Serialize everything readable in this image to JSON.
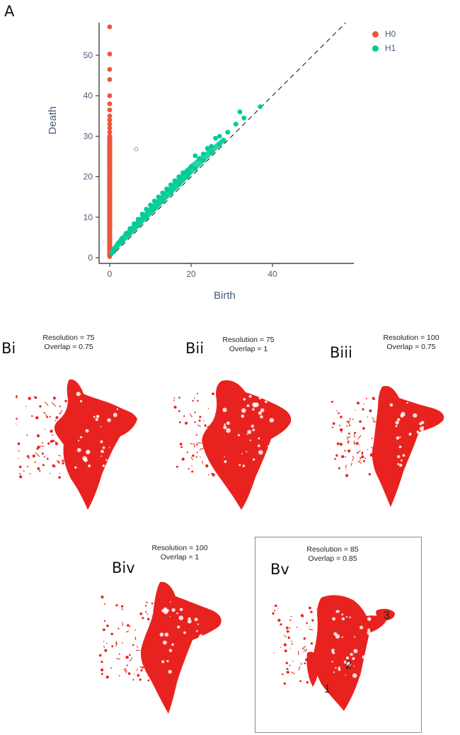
{
  "panel_a": {
    "letter": "A"
  },
  "chart_data": {
    "type": "scatter",
    "title": "",
    "xlabel": "Birth",
    "ylabel": "Death",
    "xlim": [
      -2,
      58
    ],
    "ylim": [
      -1,
      58
    ],
    "xticks": [
      0,
      20,
      40
    ],
    "yticks": [
      0,
      10,
      20,
      30,
      40,
      50
    ],
    "grid": false,
    "diagonal": {
      "style": "dashed",
      "from": [
        0,
        0
      ],
      "to": [
        58,
        58
      ]
    },
    "legend_position": "top-right",
    "series": [
      {
        "name": "H0",
        "color": "#ef553b",
        "points": [
          [
            0,
            57
          ],
          [
            0,
            50.3
          ],
          [
            0,
            46.5
          ],
          [
            0,
            44
          ],
          [
            0,
            40
          ],
          [
            0,
            38
          ],
          [
            0,
            36.5
          ],
          [
            0,
            35
          ],
          [
            0,
            34
          ],
          [
            0,
            33
          ],
          [
            0,
            32
          ],
          [
            0,
            31
          ],
          [
            0,
            30
          ],
          [
            0,
            29
          ],
          [
            0,
            28
          ],
          [
            0,
            27
          ],
          [
            0,
            26
          ],
          [
            0,
            25
          ],
          [
            0,
            24
          ],
          [
            0,
            23
          ],
          [
            0,
            22
          ],
          [
            0,
            21
          ],
          [
            0,
            20
          ],
          [
            0,
            19
          ],
          [
            0,
            18
          ],
          [
            0,
            17
          ],
          [
            0,
            16
          ],
          [
            0,
            15
          ],
          [
            0,
            14
          ],
          [
            0,
            13
          ],
          [
            0,
            12
          ],
          [
            0,
            11
          ],
          [
            0,
            10
          ],
          [
            0,
            9
          ],
          [
            0,
            8
          ],
          [
            0,
            7
          ],
          [
            0,
            6
          ],
          [
            0,
            5
          ],
          [
            0,
            4
          ],
          [
            0,
            3
          ],
          [
            0,
            2
          ],
          [
            0,
            1
          ],
          [
            0,
            0.3
          ]
        ]
      },
      {
        "name": "H1",
        "color": "#00cc96",
        "points": [
          [
            37,
            37.3
          ],
          [
            32,
            36
          ],
          [
            33,
            34.5
          ],
          [
            31,
            33
          ],
          [
            29,
            31
          ],
          [
            27,
            30
          ],
          [
            26,
            29.5
          ],
          [
            25,
            27.5
          ],
          [
            24,
            27
          ],
          [
            23,
            25.6
          ],
          [
            22,
            24.5
          ],
          [
            21,
            25.2
          ],
          [
            20,
            22.5
          ],
          [
            19,
            21.5
          ],
          [
            18,
            21
          ],
          [
            17,
            20
          ],
          [
            16,
            19
          ],
          [
            15,
            18
          ],
          [
            14,
            17
          ],
          [
            13,
            16
          ],
          [
            12,
            15
          ],
          [
            11,
            14
          ],
          [
            10,
            13
          ],
          [
            9,
            12
          ],
          [
            8,
            10.8
          ],
          [
            7,
            9.5
          ],
          [
            6,
            8.4
          ],
          [
            5,
            7.2
          ],
          [
            4,
            6
          ],
          [
            3,
            4.8
          ],
          [
            2,
            3.5
          ],
          [
            1,
            2.2
          ],
          [
            0.5,
            1.2
          ],
          [
            28,
            29
          ],
          [
            27,
            28
          ],
          [
            25,
            26
          ],
          [
            23,
            24
          ],
          [
            21,
            22
          ],
          [
            19,
            20
          ],
          [
            17,
            18
          ],
          [
            15,
            16
          ],
          [
            13,
            14
          ],
          [
            11,
            12
          ],
          [
            9,
            10
          ],
          [
            7,
            8
          ],
          [
            5,
            6
          ],
          [
            3,
            4
          ],
          [
            1,
            1.5
          ]
        ]
      },
      {
        "name": "",
        "color": "#9a9a9a",
        "hollow": true,
        "points": [
          [
            6.5,
            26.8
          ]
        ]
      }
    ]
  },
  "panels_b": [
    {
      "letter": "Bi",
      "title_line1": "Resolution = 75",
      "title_line2": "Overlap = 0.75"
    },
    {
      "letter": "Bii",
      "title_line1": "Resolution = 75",
      "title_line2": "Overlap = 1"
    },
    {
      "letter": "Biii",
      "title_line1": "Resolution = 100",
      "title_line2": "Overlap = 0.75"
    },
    {
      "letter": "Biv",
      "title_line1": "Resolution = 100",
      "title_line2": "Overlap = 1"
    },
    {
      "letter": "Bv",
      "title_line1": "Resolution = 85",
      "title_line2": "Overlap = 0.85"
    }
  ],
  "bv_labels": [
    "1",
    "2",
    "3"
  ],
  "mapper_color": "#e8231f"
}
